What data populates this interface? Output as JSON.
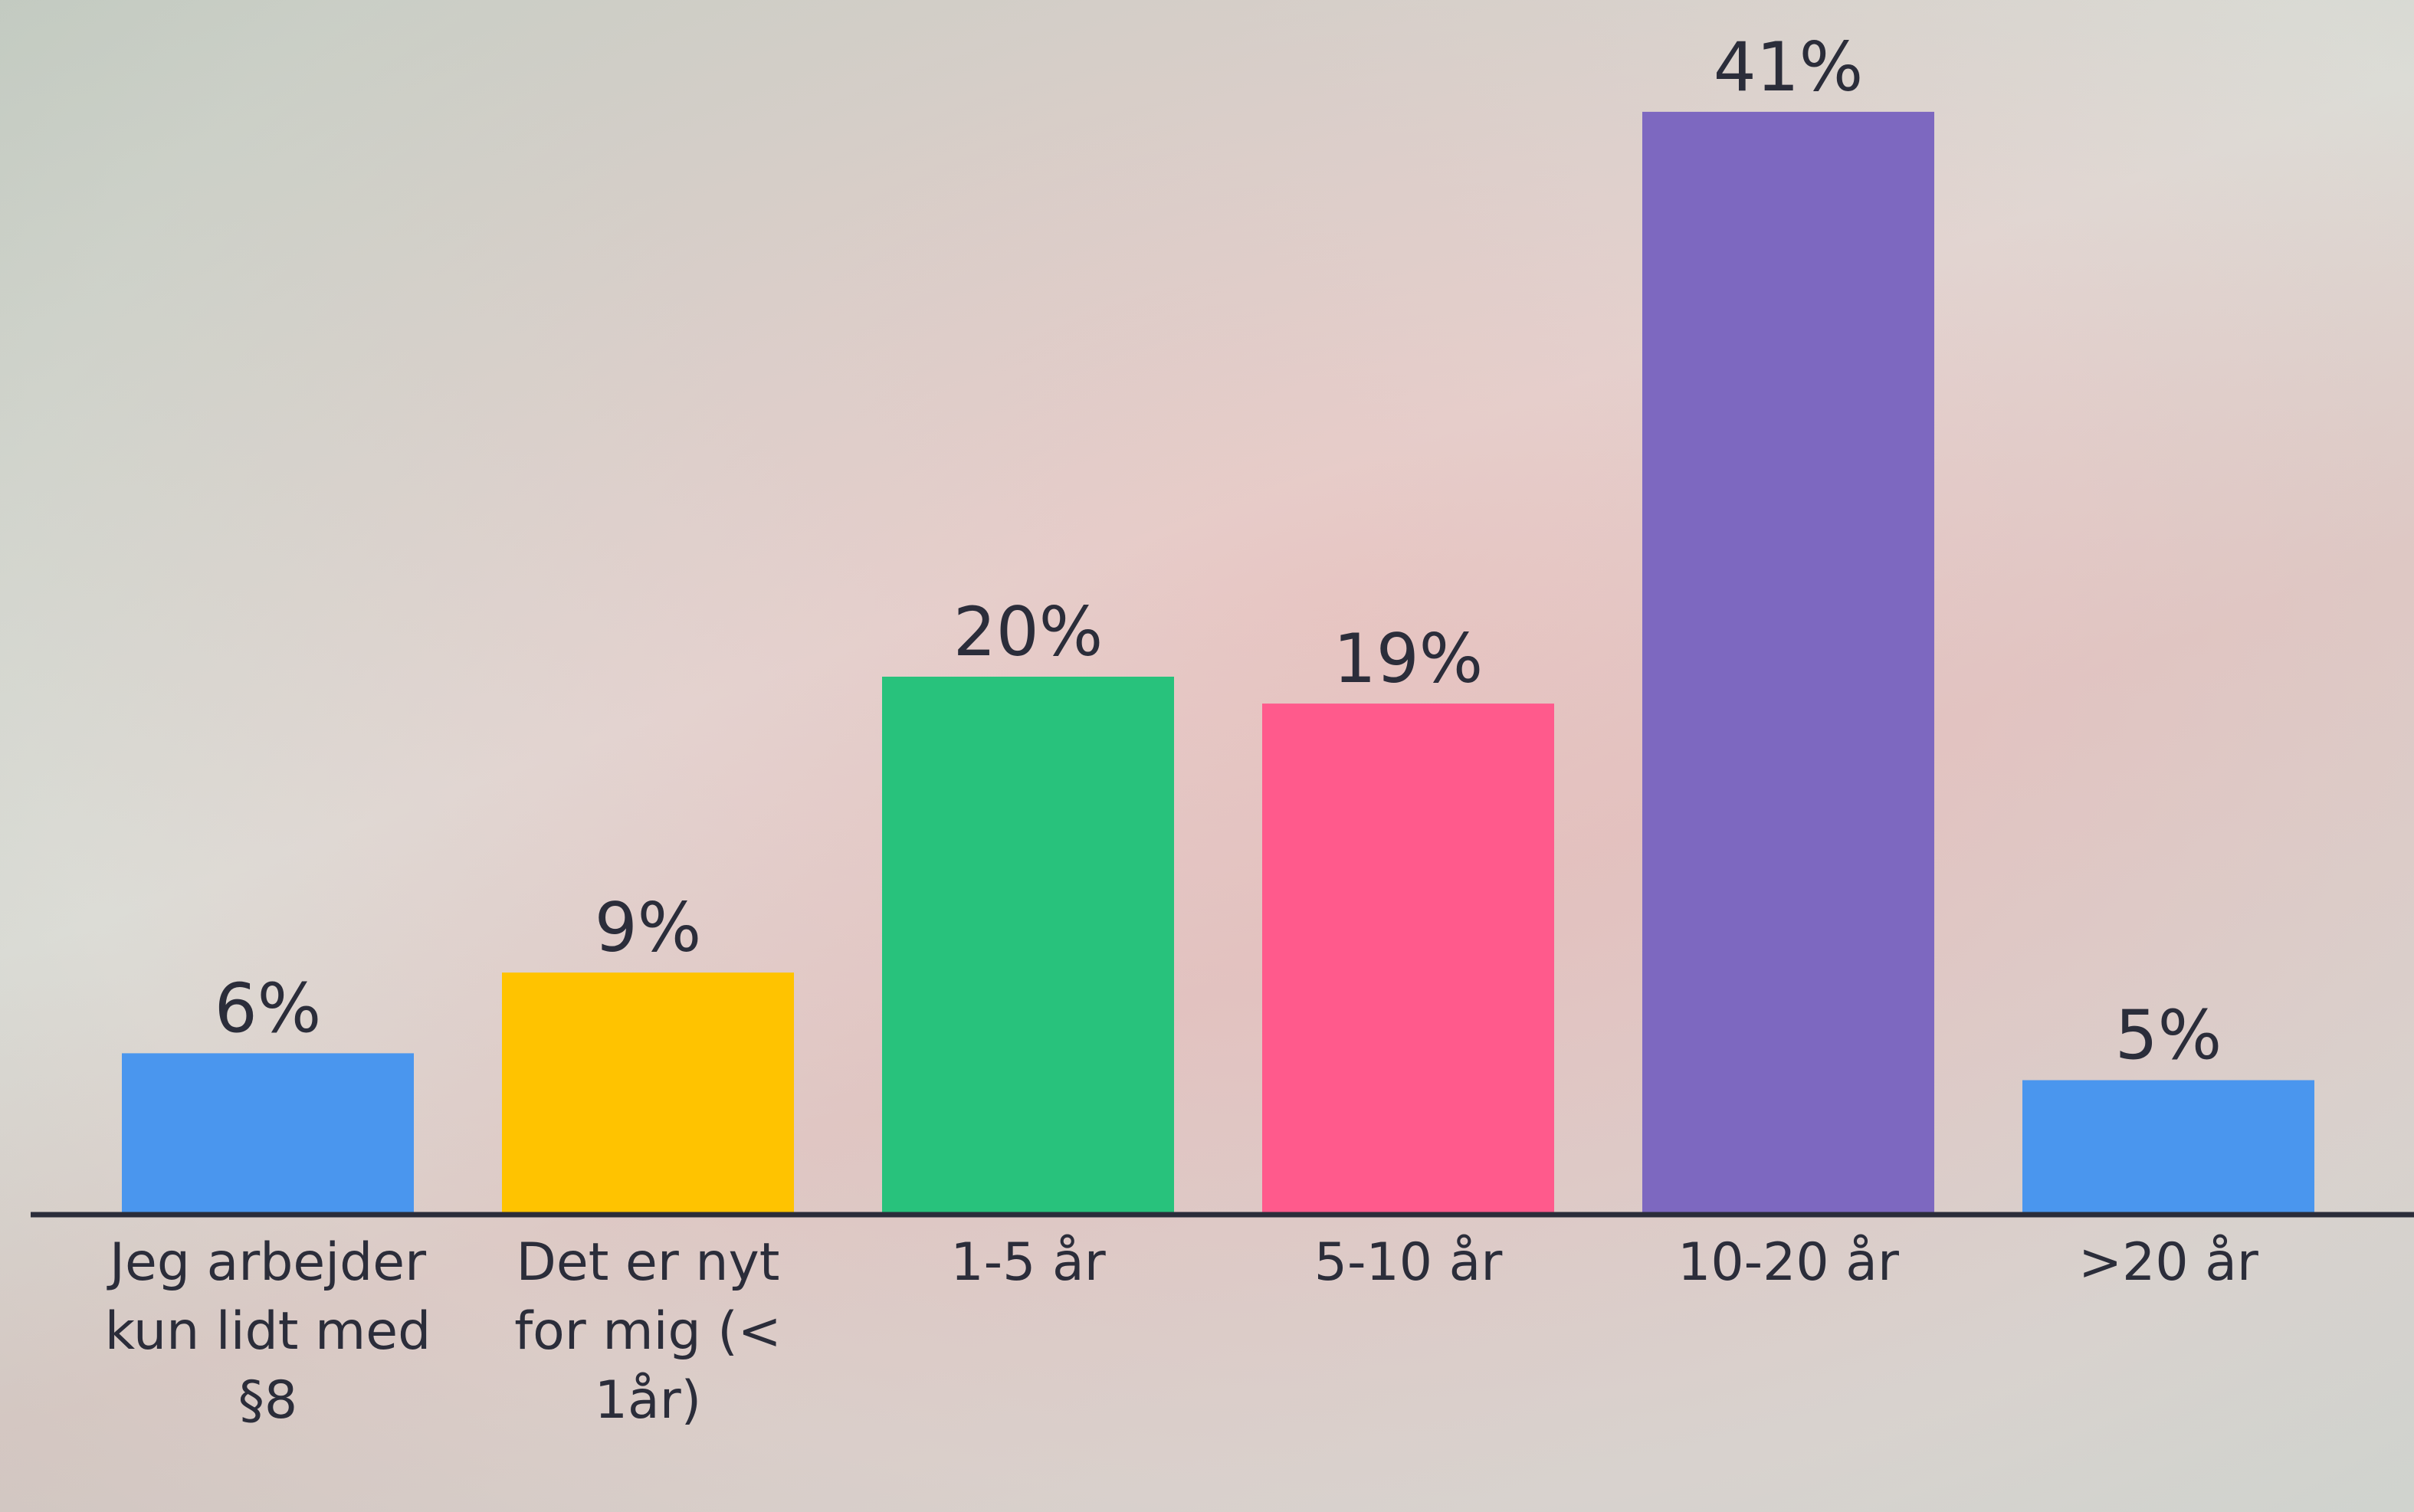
{
  "chart_data": {
    "type": "bar",
    "categories": [
      "Jeg arbejder kun lidt med §8",
      "Det er nyt for mig (< 1år)",
      "1-5 år",
      "5-10 år",
      "10-20 år",
      ">20 år"
    ],
    "values": [
      6,
      9,
      20,
      19,
      41,
      5
    ],
    "value_labels": [
      "6%",
      "9%",
      "20%",
      "19%",
      "41%",
      "5%"
    ],
    "colors": [
      "#4a96ee",
      "#ffc300",
      "#28c27c",
      "#ff5a8c",
      "#7d68c0",
      "#4a96ee"
    ]
  }
}
